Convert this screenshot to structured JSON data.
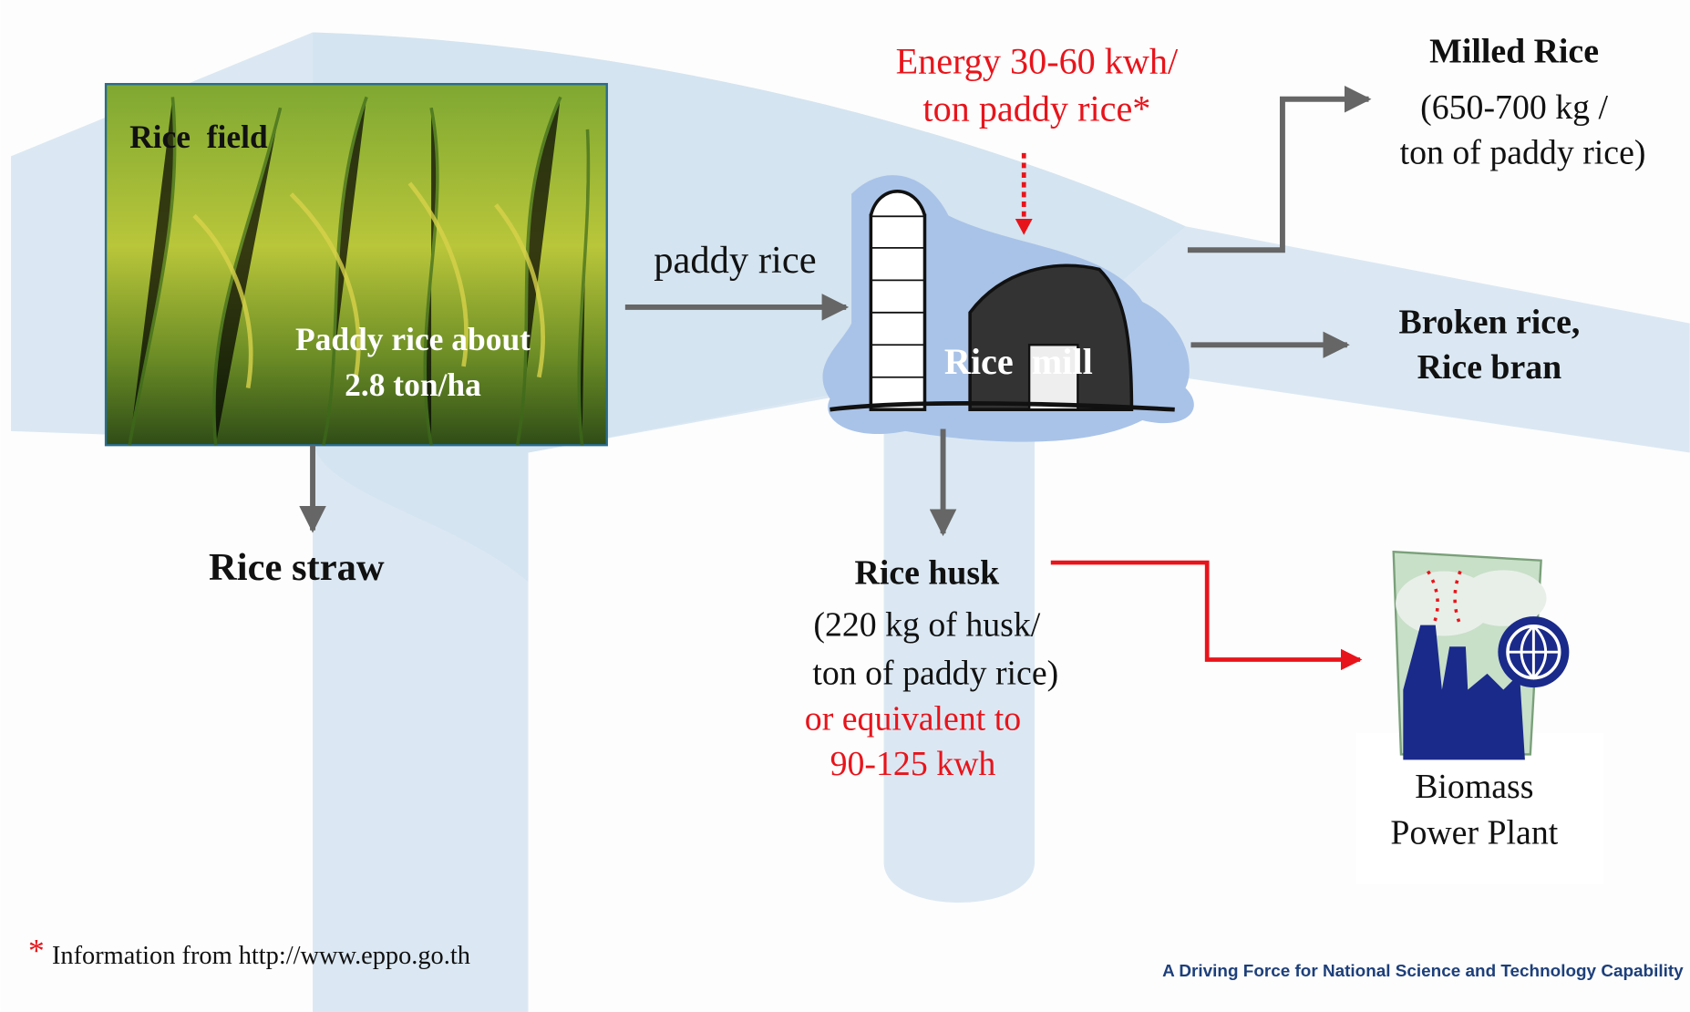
{
  "rice_field": {
    "label": "Rice  field",
    "yield": [
      "Paddy rice about",
      "2.8 ton/ha"
    ]
  },
  "paddy_rice": "paddy rice",
  "energy": [
    "Energy 30-60 kwh/",
    "ton paddy rice*"
  ],
  "rice_mill": "Rice  mill",
  "milled_rice": {
    "title": "Milled Rice",
    "detail": [
      "(650-700 kg /",
      "ton of paddy rice)"
    ]
  },
  "broken_rice": [
    "Broken rice,",
    "Rice bran"
  ],
  "rice_straw": "Rice straw",
  "rice_husk": {
    "title": "Rice husk",
    "detail": [
      "(220 kg of husk/",
      "ton of paddy rice)"
    ],
    "equivalent": [
      "or equivalent to",
      "90-125 kwh"
    ]
  },
  "power_plant": [
    "Biomass",
    "Power Plant"
  ],
  "footnote": {
    "marker": "*",
    "text": "Information from http://www.eppo.go.th"
  },
  "slogan": "A Driving Force for National Science and Technology Capability"
}
